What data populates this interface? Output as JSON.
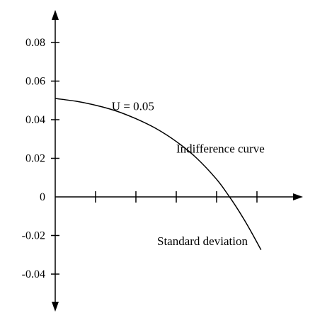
{
  "chart_data": {
    "type": "line",
    "title": "",
    "xlabel": "Standard deviation",
    "ylabel": "",
    "ylim": [
      -0.05,
      0.09
    ],
    "xlim": [
      0,
      6
    ],
    "grid": false,
    "yticks": [
      {
        "value": 0.08,
        "label": "0.08"
      },
      {
        "value": 0.06,
        "label": "0.06"
      },
      {
        "value": 0.04,
        "label": "0.04"
      },
      {
        "value": 0.02,
        "label": "0.02"
      },
      {
        "value": 0,
        "label": "0"
      },
      {
        "value": -0.02,
        "label": "-0.02"
      },
      {
        "value": -0.04,
        "label": "-0.04"
      }
    ],
    "xticks": [
      1,
      2,
      3,
      4,
      5
    ],
    "series": [
      {
        "x": [
          0,
          0.5,
          1,
          1.5,
          2,
          2.5,
          3,
          3.5,
          4,
          4.3,
          4.5,
          4.7,
          4.9,
          5.1
        ],
        "y": [
          0.051,
          0.0496,
          0.0475,
          0.0446,
          0.0405,
          0.0354,
          0.0287,
          0.0202,
          0.0091,
          0.0006,
          -0.0056,
          -0.0124,
          -0.0197,
          -0.0274
        ]
      }
    ],
    "annotations": [
      {
        "text": "U = 0.05",
        "x": 1.4,
        "y": 0.045
      },
      {
        "text": "Indifference curve",
        "x": 3,
        "y": 0.023
      }
    ]
  }
}
